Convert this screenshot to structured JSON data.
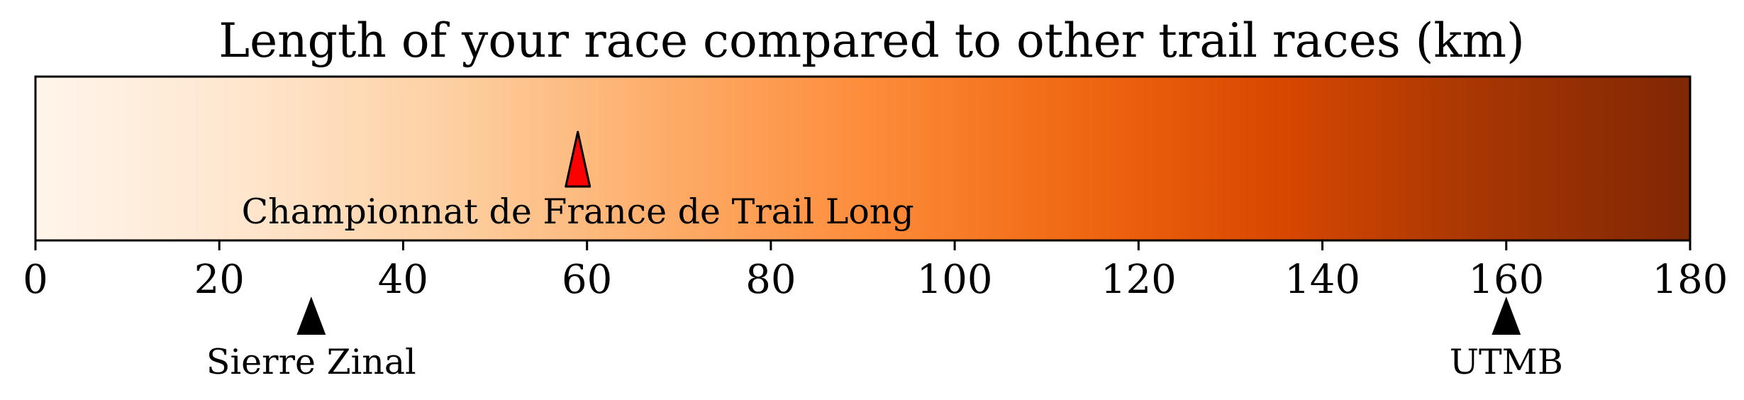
{
  "chart_data": {
    "type": "colorbar",
    "title": "Length of your race compared to other trail races (km)",
    "xlim": [
      0,
      180
    ],
    "ticks": [
      0,
      20,
      40,
      60,
      80,
      100,
      120,
      140,
      160,
      180
    ],
    "tick_labels": [
      "0",
      "20",
      "40",
      "60",
      "80",
      "100",
      "120",
      "140",
      "160",
      "180"
    ],
    "colormap": [
      "#fff5eb",
      "#fee6ce",
      "#fdd0a2",
      "#fdae6b",
      "#fd8d3c",
      "#f16913",
      "#d94801",
      "#a63603",
      "#7f2704"
    ],
    "your_race": {
      "name": "Championnat de France de Trail Long",
      "value": 59,
      "marker_color": "#ff0000"
    },
    "reference_races": [
      {
        "name": "Sierre Zinal",
        "value": 30,
        "marker_color": "#000000"
      },
      {
        "name": "UTMB",
        "value": 160,
        "marker_color": "#000000"
      }
    ]
  }
}
